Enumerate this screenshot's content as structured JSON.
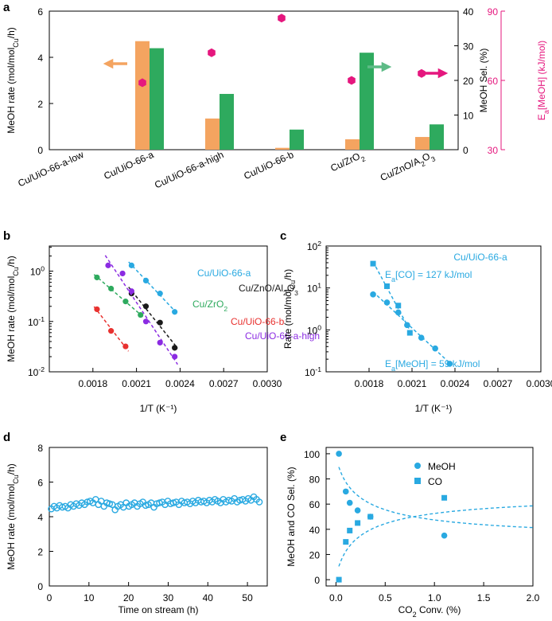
{
  "chart_data": [
    {
      "panel": "a",
      "type": "bar",
      "categories": [
        "Cu/UiO-66-a-low",
        "Cu/UiO-66-a",
        "Cu/UiO-66-a-high",
        "Cu/UiO-66-b",
        "Cu/ZrO2",
        "Cu/ZnO/A2O3"
      ],
      "category_labels": [
        {
          "base": "Cu/UiO-66-a-low",
          "sub": "",
          "tail": ""
        },
        {
          "base": "Cu/UiO-66-a",
          "sub": "",
          "tail": ""
        },
        {
          "base": "Cu/UiO-66-a-high",
          "sub": "",
          "tail": ""
        },
        {
          "base": "Cu/UiO-66-b",
          "sub": "",
          "tail": ""
        },
        {
          "base": "Cu/ZrO",
          "sub": "2",
          "tail": ""
        },
        {
          "base": "Cu/ZnO/A",
          "sub": "2",
          "tail": "O",
          "sub2": "3"
        }
      ],
      "series": [
        {
          "name": "MeOH rate",
          "axis": "left",
          "color": "#F4A460",
          "values": [
            0,
            4.7,
            1.35,
            0.08,
            0.45,
            0.55
          ]
        },
        {
          "name": "MeOH Sel.",
          "axis": "right",
          "color": "#2EAA5E",
          "values": [
            0,
            29.3,
            16.1,
            5.8,
            28.0,
            7.3
          ]
        },
        {
          "name": "Ea[MeOH]",
          "axis": "far-right",
          "color": "#E5177E",
          "marker": "hexagon",
          "values": [
            null,
            59,
            72,
            87,
            60,
            63
          ]
        }
      ],
      "left_axis": {
        "label_main": "MeOH rate (mol/mol",
        "label_sub": "Cu",
        "label_tail": "/h)",
        "ylim": [
          0,
          6
        ],
        "ticks": [
          "0",
          "2",
          "4",
          "6"
        ]
      },
      "right_axis": {
        "label": "MeOH Sel. (%)",
        "ylim": [
          0,
          40
        ],
        "ticks": [
          "0",
          "10",
          "20",
          "30",
          "40"
        ]
      },
      "far_right_axis": {
        "label_pre": "E",
        "label_sub": "a",
        "label_post": "[MeOH] (kJ/mol)",
        "ylim": [
          30,
          90
        ],
        "ticks": [
          "30",
          "60",
          "90"
        ],
        "color": "#E5177E"
      }
    },
    {
      "panel": "b",
      "type": "scatter",
      "xlabel": "1/T (K⁻¹)",
      "ylabel_main": "MeOH rate (mol/mol",
      "ylabel_sub": "Cu",
      "ylabel_tail": "/h)",
      "xlim": [
        0.0015,
        0.003
      ],
      "ylim_log": [
        0.01,
        3.16
      ],
      "xticks": [
        "0.0018",
        "0.0021",
        "0.0024",
        "0.0027",
        "0.0030"
      ],
      "yticks": [
        {
          "base": "10",
          "exp": "-2"
        },
        {
          "base": "10",
          "exp": "-1"
        },
        {
          "base": "10",
          "exp": "0"
        }
      ],
      "series": [
        {
          "name": "Cu/UiO-66-a",
          "legend_base": "Cu/UiO-66-a",
          "color": "#29A9E1",
          "x": [
            0.002066,
            0.002165,
            0.002262,
            0.002363
          ],
          "y": [
            1.3,
            0.65,
            0.36,
            0.155
          ]
        },
        {
          "name": "Cu/ZnO/Al2O3",
          "legend_base": "Cu/ZnO/Al",
          "legend_sub": "2",
          "legend_tail": "O",
          "legend_sub2": "3",
          "color": "#1A1A1A",
          "x": [
            0.002066,
            0.002165,
            0.002262,
            0.002363
          ],
          "y": [
            0.36,
            0.2,
            0.095,
            0.03
          ]
        },
        {
          "name": "Cu/ZrO2",
          "legend_base": "Cu/ZrO",
          "legend_sub": "2",
          "color": "#2EAA5E",
          "x": [
            0.001828,
            0.001925,
            0.002025,
            0.002128
          ],
          "y": [
            0.75,
            0.45,
            0.25,
            0.135
          ]
        },
        {
          "name": "Cu/UiO-66-b",
          "legend_base": "Cu/UiO-66-b",
          "color": "#E8312F",
          "x": [
            0.001828,
            0.001925,
            0.002025
          ],
          "y": [
            0.175,
            0.065,
            0.032
          ]
        },
        {
          "name": "Cu/UiO-66-a-high",
          "legend_base": "Cu/UiO-66-a-high",
          "color": "#8B2BE2",
          "x": [
            0.001905,
            0.002004,
            0.002066,
            0.002165,
            0.002262,
            0.002363
          ],
          "y": [
            1.3,
            0.9,
            0.4,
            0.1,
            0.038,
            0.02
          ]
        }
      ]
    },
    {
      "panel": "c",
      "type": "scatter",
      "xlabel": "1/T (K⁻¹)",
      "ylabel_main": "Rate (mol/mol",
      "ylabel_sub": "Cu",
      "ylabel_tail": "/h)",
      "xlim": [
        0.0015,
        0.003
      ],
      "ylim_log": [
        0.1,
        100
      ],
      "xticks": [
        "0.0018",
        "0.0021",
        "0.0024",
        "0.0027",
        "0.0030"
      ],
      "yticks": [
        {
          "base": "10",
          "exp": "-1"
        },
        {
          "base": "10",
          "exp": "0"
        },
        {
          "base": "10",
          "exp": "1"
        },
        {
          "base": "10",
          "exp": "2"
        }
      ],
      "title": "Cu/UiO-66-a",
      "color": "#29A9E1",
      "annotations": [
        {
          "pre": "E",
          "sub": "a",
          "post": "[CO] = 127 kJ/mol"
        },
        {
          "pre": "E",
          "sub": "a",
          "post": "[MeOH] = 59 kJ/mol"
        }
      ],
      "series": [
        {
          "name": "MeOH",
          "marker": "circle",
          "x": [
            0.001828,
            0.001925,
            0.002004,
            0.002066,
            0.002165,
            0.002262,
            0.002363
          ],
          "y": [
            7.0,
            4.5,
            2.6,
            1.3,
            0.65,
            0.36,
            0.155
          ]
        },
        {
          "name": "CO",
          "marker": "square",
          "x": [
            0.001828,
            0.001925,
            0.002004,
            0.002085
          ],
          "y": [
            38,
            11,
            3.8,
            0.85
          ]
        }
      ]
    },
    {
      "panel": "d",
      "type": "scatter",
      "xlabel": "Time on stream (h)",
      "ylabel_main": "MeOH rate (mol/mol",
      "ylabel_sub": "Cu",
      "ylabel_tail": "/h)",
      "xlim": [
        0,
        55
      ],
      "ylim": [
        0,
        8
      ],
      "xticks": [
        "0",
        "10",
        "20",
        "30",
        "40",
        "50"
      ],
      "yticks": [
        "0",
        "2",
        "4",
        "6",
        "8"
      ],
      "color": "#29A9E1",
      "series": [
        {
          "name": "MeOH rate",
          "x": [
            0.5,
            1.2,
            1.9,
            2.6,
            3.3,
            4.0,
            4.7,
            5.4,
            6.1,
            6.8,
            7.5,
            8.2,
            8.9,
            9.6,
            10.3,
            11.0,
            11.7,
            12.4,
            13.1,
            13.8,
            14.5,
            15.2,
            15.9,
            16.6,
            17.3,
            18.0,
            18.7,
            19.4,
            20.1,
            20.8,
            21.5,
            22.2,
            22.9,
            23.6,
            24.3,
            25.0,
            25.7,
            26.4,
            27.1,
            27.8,
            28.5,
            29.2,
            29.9,
            30.6,
            31.3,
            32.0,
            32.7,
            33.4,
            34.1,
            34.8,
            35.5,
            36.2,
            36.9,
            37.6,
            38.3,
            39.0,
            39.7,
            40.4,
            41.1,
            41.8,
            42.5,
            43.2,
            43.9,
            44.6,
            45.3,
            46.0,
            46.7,
            47.4,
            48.1,
            48.8,
            49.5,
            50.2,
            50.9,
            51.6,
            52.3,
            53.0
          ],
          "y": [
            4.45,
            4.6,
            4.5,
            4.65,
            4.55,
            4.6,
            4.5,
            4.7,
            4.6,
            4.75,
            4.65,
            4.8,
            4.7,
            4.85,
            4.9,
            4.8,
            5.0,
            4.7,
            4.9,
            4.6,
            4.8,
            4.75,
            4.7,
            4.4,
            4.6,
            4.7,
            4.55,
            4.8,
            4.6,
            4.7,
            4.8,
            4.6,
            4.75,
            4.85,
            4.65,
            4.7,
            4.8,
            4.55,
            4.75,
            4.8,
            4.85,
            4.7,
            4.9,
            4.75,
            4.8,
            4.85,
            4.7,
            4.9,
            4.8,
            4.85,
            4.75,
            4.9,
            4.8,
            4.95,
            4.85,
            4.9,
            4.8,
            4.95,
            4.85,
            5.0,
            4.9,
            4.8,
            5.0,
            4.85,
            4.95,
            4.9,
            5.05,
            4.85,
            4.95,
            5.0,
            4.9,
            5.05,
            4.95,
            5.15,
            5.0,
            4.85
          ]
        }
      ]
    },
    {
      "panel": "e",
      "type": "scatter",
      "xlabel_pre": "CO",
      "xlabel_sub": "2",
      "xlabel_post": " Conv. (%)",
      "ylabel": "MeOH and CO Sel. (%)",
      "xlim": [
        -0.1,
        2.0
      ],
      "ylim": [
        -5,
        105
      ],
      "xticks": [
        "0.0",
        "0.5",
        "1.0",
        "1.5",
        "2.0"
      ],
      "yticks": [
        "0",
        "20",
        "40",
        "60",
        "80",
        "100"
      ],
      "color": "#29A9E1",
      "series": [
        {
          "name": "MeOH",
          "marker": "circle",
          "x": [
            0.03,
            0.1,
            0.14,
            0.22,
            0.35,
            1.1
          ],
          "y": [
            100,
            70,
            61,
            55,
            50,
            35
          ]
        },
        {
          "name": "CO",
          "marker": "square",
          "x": [
            0.03,
            0.1,
            0.14,
            0.22,
            0.35,
            1.1
          ],
          "y": [
            0,
            30,
            39,
            45,
            50,
            65
          ]
        }
      ]
    }
  ],
  "panel_labels": [
    "a",
    "b",
    "c",
    "d",
    "e"
  ]
}
